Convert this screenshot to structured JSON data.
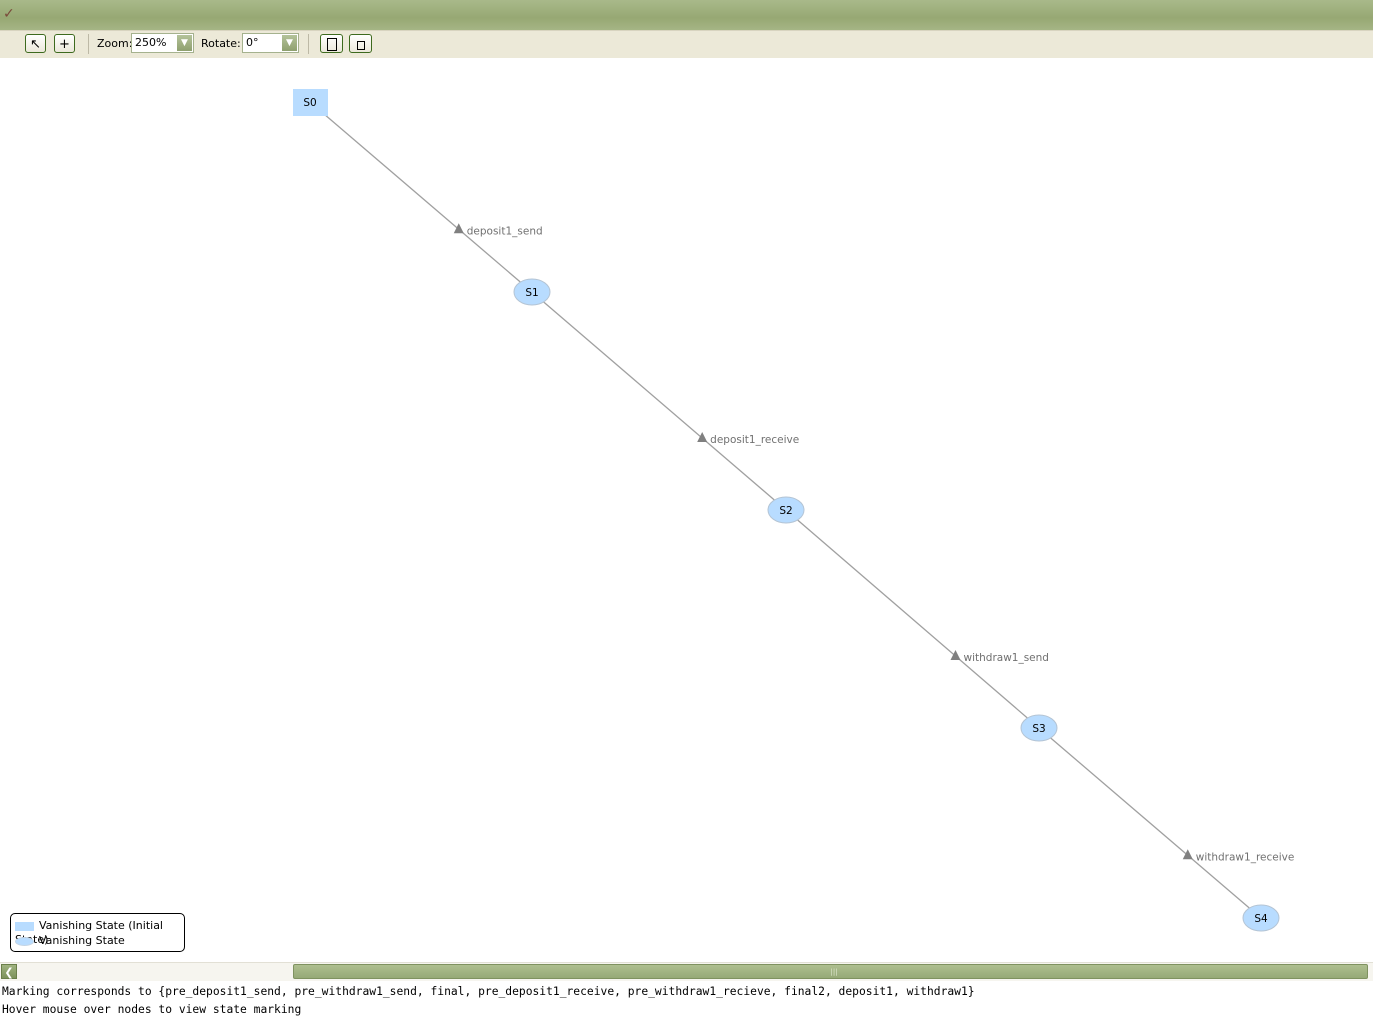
{
  "titlebar": {
    "icon": "pipe-icon"
  },
  "toolbar": {
    "select_tool_icon": "pointer-icon",
    "add_tool_icon": "plus-icon",
    "zoom_label": "Zoom:",
    "zoom_value": "250%",
    "rotate_label": "Rotate:",
    "rotate_value": "0°",
    "page_large_icon": "page-icon",
    "page_small_icon": "page-small-icon"
  },
  "graph": {
    "nodes": [
      {
        "id": "S0",
        "shape": "rect"
      },
      {
        "id": "S1",
        "shape": "ellipse"
      },
      {
        "id": "S2",
        "shape": "ellipse"
      },
      {
        "id": "S3",
        "shape": "ellipse"
      },
      {
        "id": "S4",
        "shape": "ellipse"
      }
    ],
    "edges": [
      {
        "from": "S0",
        "to": "S1",
        "label": "deposit1_send"
      },
      {
        "from": "S1",
        "to": "S2",
        "label": "deposit1_receive"
      },
      {
        "from": "S2",
        "to": "S3",
        "label": "withdraw1_send"
      },
      {
        "from": "S3",
        "to": "S4",
        "label": "withdraw1_receive"
      }
    ],
    "colors": {
      "node_fill": "#b8dcff",
      "edge": "#a0a0a0",
      "arrow": "#808080",
      "label": "#707070"
    }
  },
  "legend": {
    "items": [
      {
        "label": "Vanishing State (Initial State)",
        "shape": "rect"
      },
      {
        "label": "Vanishing State",
        "shape": "ellipse"
      }
    ]
  },
  "status": {
    "marking": "Marking corresponds to {pre_deposit1_send, pre_withdraw1_send, final, pre_deposit1_receive, pre_withdraw1_recieve, final2, deposit1, withdraw1}",
    "hint": "Hover mouse over nodes to view state marking"
  }
}
